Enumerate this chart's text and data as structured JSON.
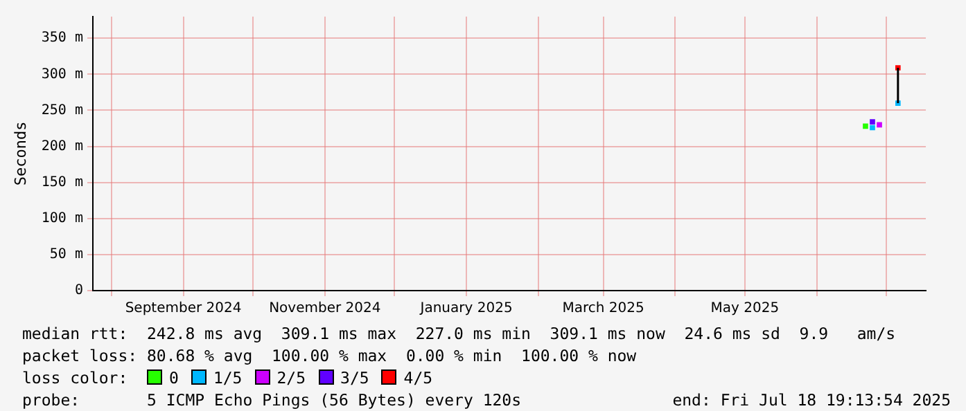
{
  "chart_data": {
    "type": "scatter",
    "ylabel": "Seconds",
    "legend_title": "loss color:",
    "legend": "bottom",
    "grid": true,
    "marker": "square",
    "xlim": [
      "2024-07-24",
      "2025-07-18"
    ],
    "xticks": [
      {
        "value": "2024-08-01",
        "label": null
      },
      {
        "value": "2024-09-01",
        "label": "September 2024"
      },
      {
        "value": "2024-10-01",
        "label": null
      },
      {
        "value": "2024-11-01",
        "label": "November 2024"
      },
      {
        "value": "2024-12-01",
        "label": null
      },
      {
        "value": "2025-01-01",
        "label": "January 2025"
      },
      {
        "value": "2025-02-01",
        "label": null
      },
      {
        "value": "2025-03-01",
        "label": "March 2025"
      },
      {
        "value": "2025-04-01",
        "label": null
      },
      {
        "value": "2025-05-01",
        "label": "May 2025"
      },
      {
        "value": "2025-06-01",
        "label": null
      },
      {
        "value": "2025-07-01",
        "label": null
      }
    ],
    "ylim": [
      0,
      380
    ],
    "yticks": [
      {
        "value": 0,
        "label": "0"
      },
      {
        "value": 50,
        "label": "50 m"
      },
      {
        "value": 100,
        "label": "100 m"
      },
      {
        "value": 150,
        "label": "150 m"
      },
      {
        "value": 200,
        "label": "200 m"
      },
      {
        "value": 250,
        "label": "250 m"
      },
      {
        "value": 300,
        "label": "300 m"
      },
      {
        "value": 350,
        "label": "350 m"
      }
    ],
    "series": [
      {
        "type": "line",
        "marker": "none",
        "color": "#000000",
        "x": [
          "2025-07-06",
          "2025-07-06"
        ],
        "values": [
          260,
          309
        ]
      },
      {
        "name": "0",
        "color": "#26ff00",
        "x": [
          "2025-06-22"
        ],
        "values": [
          228
        ]
      },
      {
        "name": "1/5",
        "color": "#00b8ff",
        "x": [
          "2025-06-25",
          "2025-07-06"
        ],
        "values": [
          226,
          260
        ]
      },
      {
        "name": "2/5",
        "color": "#cc00ff",
        "x": [
          "2025-06-28"
        ],
        "values": [
          230
        ]
      },
      {
        "name": "3/5",
        "color": "#6000ff",
        "x": [
          "2025-06-25"
        ],
        "values": [
          234
        ]
      },
      {
        "name": "4/5",
        "color": "#ff0000",
        "x": [
          "2025-07-06"
        ],
        "values": [
          309
        ]
      }
    ],
    "annotations": [
      "median rtt:  242.8 ms avg  309.1 ms max  227.0 ms min  309.1 ms now  24.6 ms sd  9.9   am/s",
      "packet loss: 80.68 % avg  100.00 % max  0.00 % min  100.00 % now",
      "probe:       5 ICMP Echo Pings (56 Bytes) every 120s",
      "end: Fri Jul 18 19:13:54 2025"
    ]
  }
}
